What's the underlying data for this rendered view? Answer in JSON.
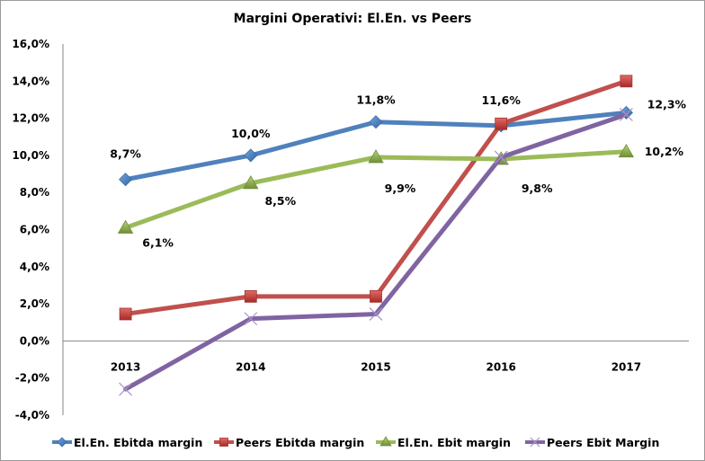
{
  "chart_data": {
    "type": "line",
    "title": "Margini Operativi: El.En. vs Peers",
    "xlabel": "",
    "ylabel": "",
    "categories": [
      "2013",
      "2014",
      "2015",
      "2016",
      "2017"
    ],
    "ylim": [
      -0.04,
      0.16
    ],
    "yticks": [
      0.16,
      0.14,
      0.12,
      0.1,
      0.08,
      0.06,
      0.04,
      0.02,
      0.0,
      -0.02,
      -0.04
    ],
    "ytick_labels": [
      "16,0%",
      "14,0%",
      "12,0%",
      "10,0%",
      "8,0%",
      "6,0%",
      "4,0%",
      "2,0%",
      "0,0%",
      "-2,0%",
      "-4,0%"
    ],
    "grid": false,
    "legend_position": "bottom",
    "series": [
      {
        "name": "El.En. Ebitda margin",
        "color": "#4F81BD",
        "marker": "diamond",
        "values": [
          0.087,
          0.1,
          0.118,
          0.116,
          0.123
        ],
        "data_labels": [
          "8,7%",
          "10,0%",
          "11,8%",
          "11,6%",
          "12,3%"
        ]
      },
      {
        "name": "Peers Ebitda margin",
        "color": "#C0504D",
        "marker": "square",
        "values": [
          0.0145,
          0.024,
          0.024,
          0.117,
          0.14
        ],
        "data_labels": null
      },
      {
        "name": "El.En. Ebit margin",
        "color": "#9BBB59",
        "marker": "triangle",
        "values": [
          0.061,
          0.085,
          0.099,
          0.098,
          0.102
        ],
        "data_labels": [
          "6,1%",
          "8,5%",
          "9,9%",
          "9,8%",
          "10,2%"
        ]
      },
      {
        "name": "Peers Ebit Margin",
        "color": "#8064A2",
        "marker": "x",
        "values": [
          -0.026,
          0.012,
          0.0145,
          0.099,
          0.122
        ],
        "data_labels": null
      }
    ]
  }
}
